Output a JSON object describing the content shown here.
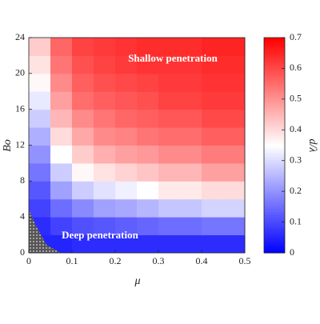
{
  "chart_data": {
    "type": "heatmap",
    "xlabel": "μ",
    "ylabel": "Bo",
    "colorbar_label": "d/λ",
    "annotations": [
      "Shallow penetration",
      "Deep penetration"
    ],
    "x": [
      0.025,
      0.075,
      0.125,
      0.175,
      0.225,
      0.275,
      0.325,
      0.375,
      0.425,
      0.475
    ],
    "y": [
      1,
      3,
      5,
      7,
      9,
      11,
      13,
      15,
      17,
      19,
      21,
      23
    ],
    "z": [
      [
        0.05,
        0.05,
        0.06,
        0.06,
        0.06,
        0.06,
        0.06,
        0.06,
        0.06,
        0.06
      ],
      [
        0.06,
        0.09,
        0.11,
        0.12,
        0.13,
        0.14,
        0.15,
        0.15,
        0.16,
        0.16
      ],
      [
        0.09,
        0.15,
        0.19,
        0.22,
        0.23,
        0.25,
        0.27,
        0.27,
        0.29,
        0.29
      ],
      [
        0.12,
        0.22,
        0.28,
        0.31,
        0.33,
        0.35,
        0.38,
        0.38,
        0.4,
        0.4
      ],
      [
        0.16,
        0.28,
        0.36,
        0.39,
        0.41,
        0.43,
        0.45,
        0.45,
        0.48,
        0.48
      ],
      [
        0.2,
        0.35,
        0.42,
        0.46,
        0.48,
        0.49,
        0.51,
        0.51,
        0.53,
        0.53
      ],
      [
        0.24,
        0.4,
        0.47,
        0.51,
        0.52,
        0.54,
        0.55,
        0.55,
        0.57,
        0.57
      ],
      [
        0.28,
        0.45,
        0.51,
        0.54,
        0.56,
        0.57,
        0.58,
        0.58,
        0.6,
        0.6
      ],
      [
        0.32,
        0.48,
        0.55,
        0.57,
        0.58,
        0.59,
        0.61,
        0.61,
        0.62,
        0.62
      ],
      [
        0.36,
        0.51,
        0.57,
        0.59,
        0.6,
        0.61,
        0.62,
        0.62,
        0.63,
        0.63
      ],
      [
        0.39,
        0.54,
        0.59,
        0.61,
        0.62,
        0.63,
        0.63,
        0.63,
        0.64,
        0.64
      ],
      [
        0.42,
        0.56,
        0.61,
        0.62,
        0.63,
        0.64,
        0.64,
        0.64,
        0.65,
        0.65
      ]
    ],
    "xlim": [
      0,
      0.5
    ],
    "xticks": [
      0,
      0.1,
      0.2,
      0.3,
      0.4,
      0.5
    ],
    "ylim": [
      0,
      24
    ],
    "yticks": [
      0,
      4,
      8,
      12,
      16,
      20,
      24
    ],
    "clim": [
      0,
      0.7
    ],
    "cticks": [
      0,
      0.1,
      0.2,
      0.3,
      0.4,
      0.5,
      0.6,
      0.7
    ],
    "colormap": [
      "#0000ff",
      "#ffffff",
      "#ff0000"
    ]
  }
}
